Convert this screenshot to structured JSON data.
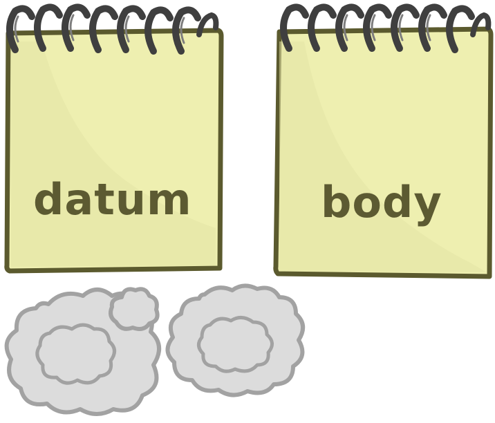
{
  "notepads": [
    {
      "word": "datum"
    },
    {
      "word": "body"
    }
  ],
  "decorations": [
    "smoke-puff-icon",
    "smoke-puff-icon"
  ],
  "colors": {
    "paper": "#eeefb0",
    "paper_shade": "#e3e4a6",
    "border": "#5b5a2e",
    "ring": "#3f3f3f",
    "ring_highlight": "#7d7d7d",
    "text": "#5c5a32",
    "smoke_fill": "#dcdcdc",
    "smoke_stroke": "#a2a2a2"
  }
}
